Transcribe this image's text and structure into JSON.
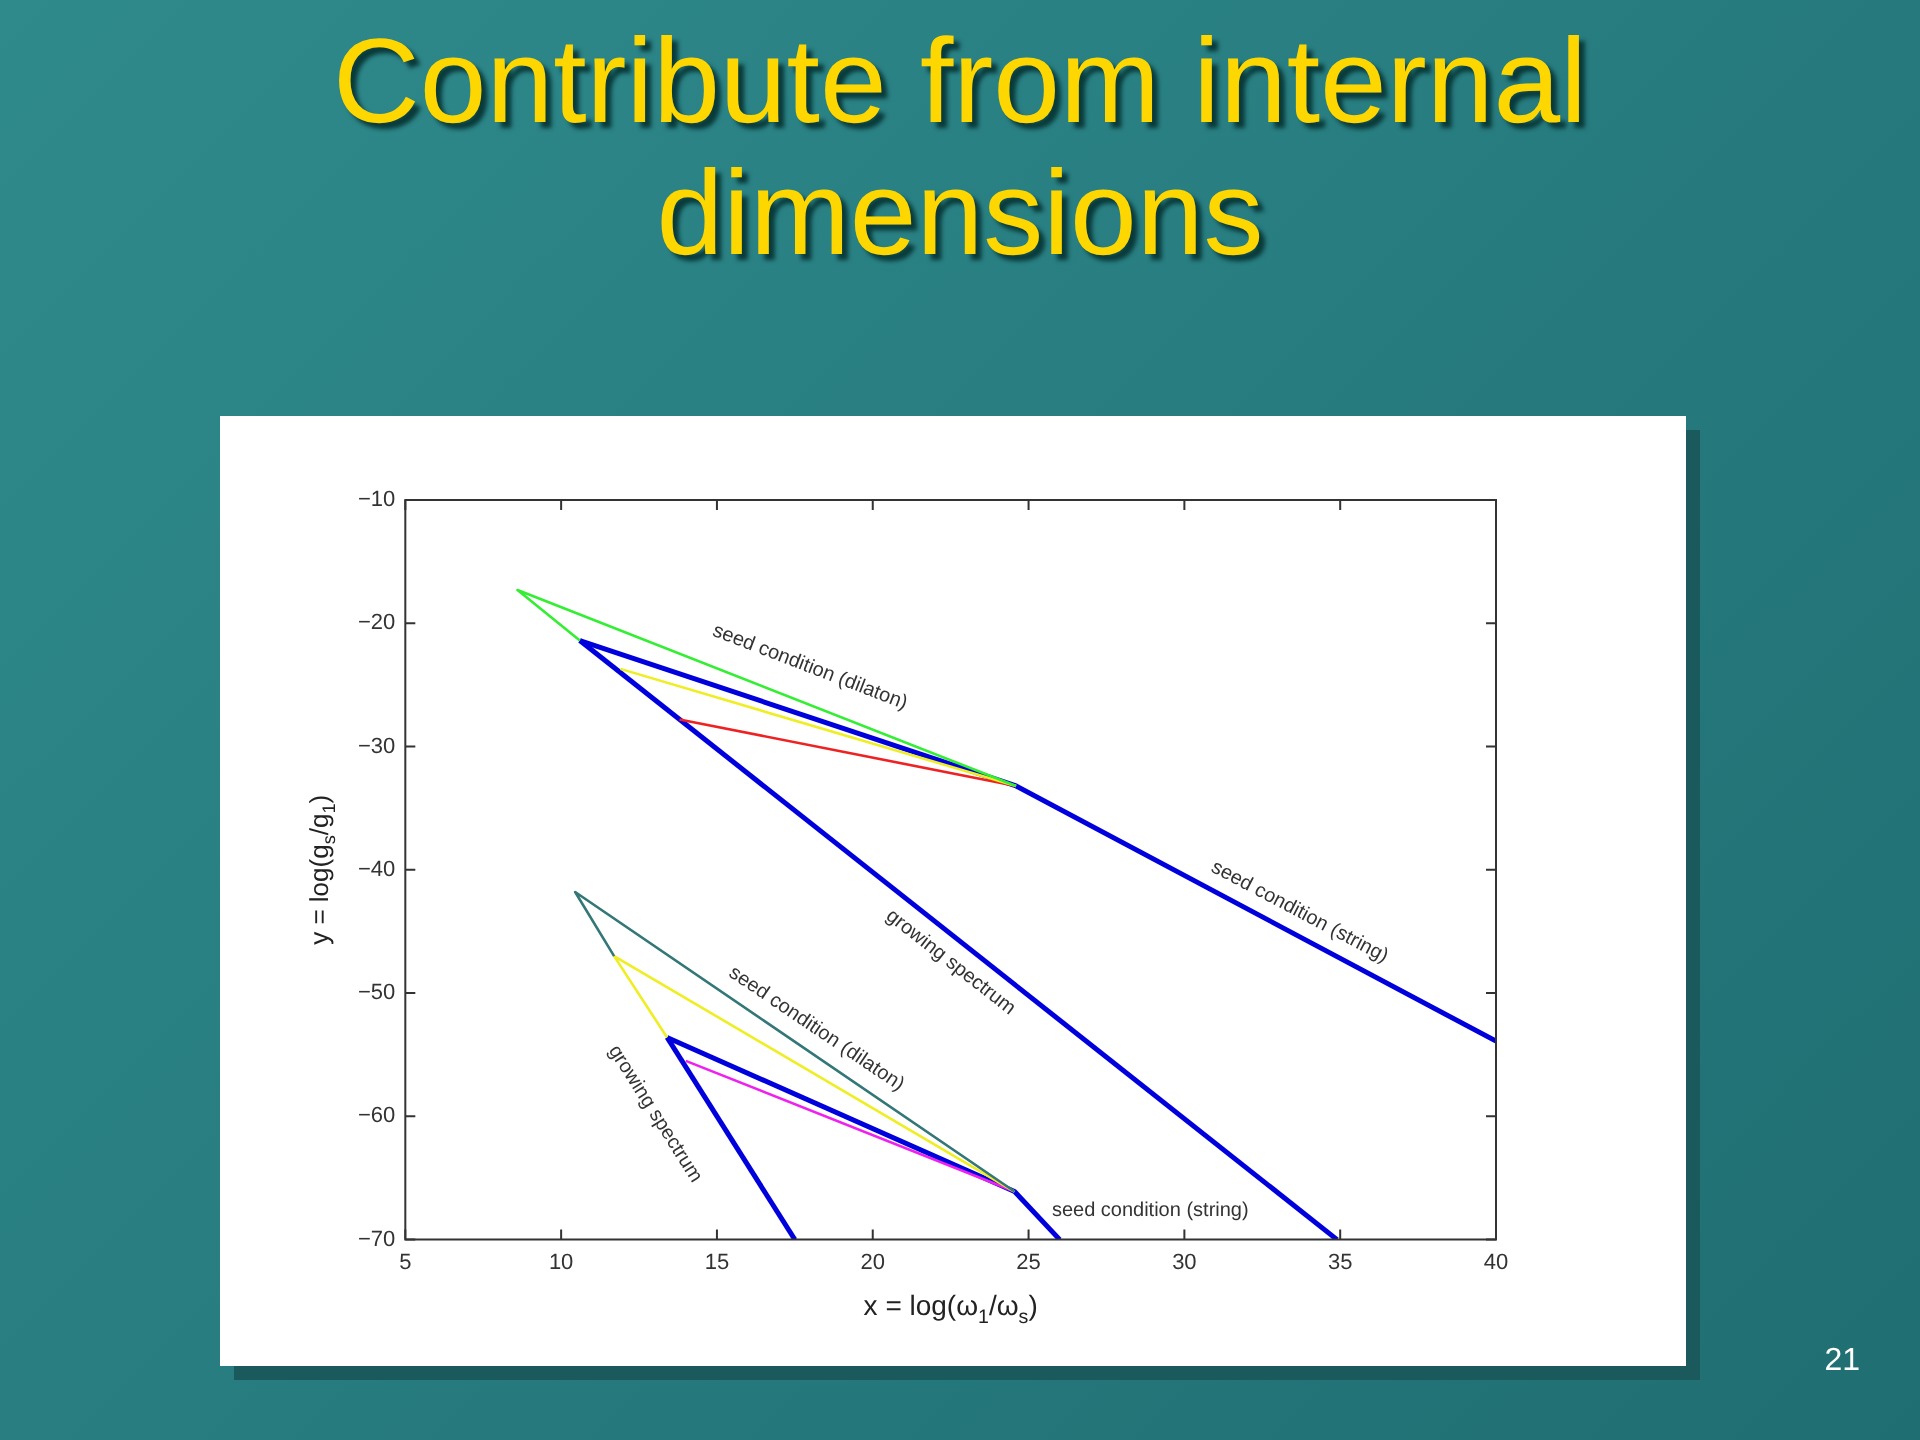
{
  "chart_data": {
    "type": "line",
    "title": "Contribute from internal dimensions",
    "xlabel": "x = log(ω$_{1}$/ω$_{s}$)",
    "ylabel": "y = log(g$_{s}$/g$_{1}$)",
    "xlim": [
      5,
      40
    ],
    "xticks": [
      5,
      10,
      15,
      20,
      25,
      30,
      35,
      40
    ],
    "ylim": [
      -70,
      -10
    ],
    "yticks": [
      -70,
      -60,
      -50,
      -40,
      -30,
      -20,
      -10
    ],
    "grid": false,
    "legend": false,
    "marker": "none",
    "line_style": "solid",
    "series": [
      {
        "color": "#33ee33",
        "x": [
          10.6,
          8.6,
          24.6
        ],
        "values": [
          -21.4,
          -17.3,
          -33.2
        ]
      },
      {
        "color": "#eeee22",
        "x": [
          11.9,
          24.6
        ],
        "values": [
          -23.7,
          -33.2
        ]
      },
      {
        "color": "#ee2222",
        "x": [
          13.8,
          24.6
        ],
        "values": [
          -27.8,
          -33.2
        ]
      },
      {
        "color": "#0000dd",
        "x": [
          10.6,
          24.6,
          40
        ],
        "values": [
          -21.4,
          -33.2,
          -53.9
        ]
      },
      {
        "color": "#0000dd",
        "x": [
          10.6,
          34.9
        ],
        "values": [
          -21.4,
          -70
        ]
      },
      {
        "color": "#337777",
        "x": [
          11.7,
          10.45,
          24.55
        ],
        "values": [
          -47,
          -41.8,
          -66.1
        ]
      },
      {
        "color": "#eeee22",
        "x": [
          13.4,
          11.7,
          24.55
        ],
        "values": [
          -53.6,
          -47,
          -66.1
        ]
      },
      {
        "color": "#ee22ee",
        "x": [
          14,
          24.55
        ],
        "values": [
          -55.5,
          -66.1
        ]
      },
      {
        "color": "#0000dd",
        "x": [
          13.4,
          24.55,
          26
        ],
        "values": [
          -53.6,
          -66.1,
          -70
        ]
      },
      {
        "color": "#0000dd",
        "x": [
          13.4,
          17.5
        ],
        "values": [
          -53.6,
          -70
        ]
      }
    ],
    "annotations": [
      "seed condition (dilaton)",
      "seed condition (string)",
      "growing spectrum",
      "seed condition (dilaton)",
      "growing spectrum",
      "seed condition (string)",
      "21"
    ]
  }
}
